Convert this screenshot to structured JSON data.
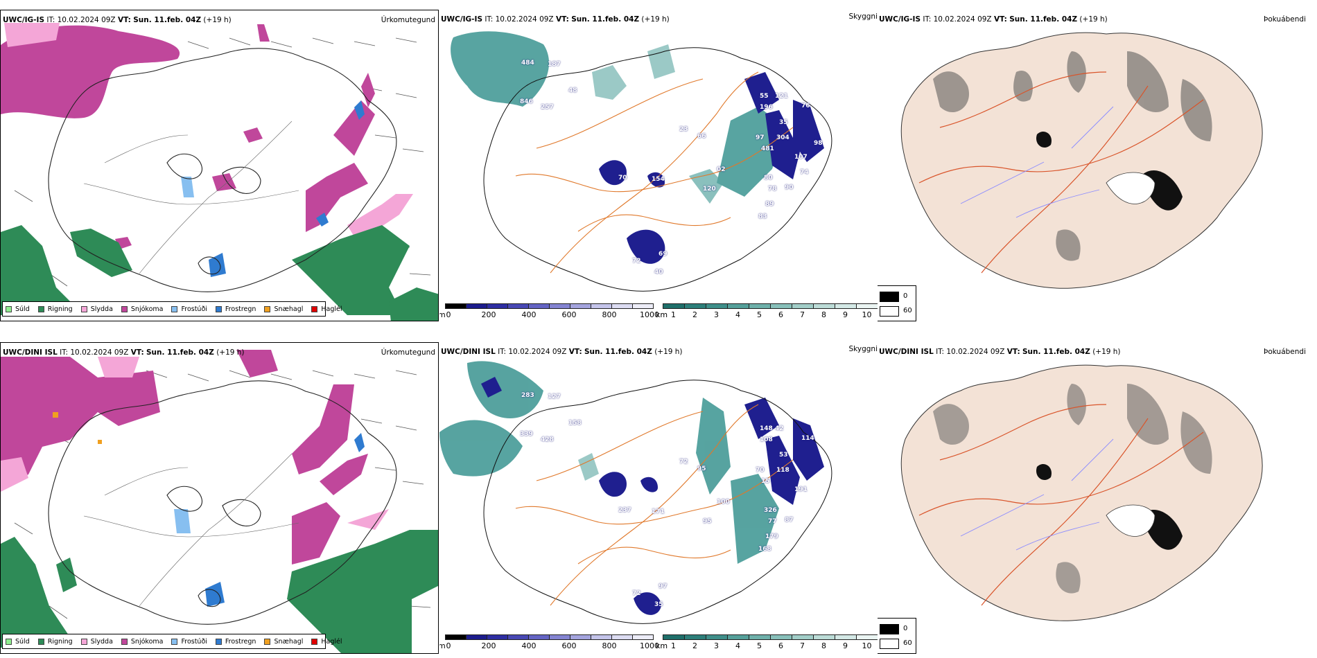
{
  "precip_legend": [
    {
      "label": "Súld",
      "color": "#90ee90"
    },
    {
      "label": "Rigning",
      "color": "#2e8b57"
    },
    {
      "label": "Slydda",
      "color": "#f4a6d7"
    },
    {
      "label": "Snjókoma",
      "color": "#c0479b"
    },
    {
      "label": "Frostúði",
      "color": "#87bff0"
    },
    {
      "label": "Frostregn",
      "color": "#2f7bd0"
    },
    {
      "label": "Snæhagl",
      "color": "#f0a020"
    },
    {
      "label": "Haglél",
      "color": "#e00000"
    }
  ],
  "cloudbase_scale": {
    "unit": "m",
    "ticks": [
      "0",
      "200",
      "400",
      "600",
      "800",
      "1000"
    ],
    "colors": [
      "#000000",
      "#1c1c8c",
      "#2e2ea2",
      "#4848b4",
      "#6464c4",
      "#8484d2",
      "#a4a4de",
      "#c4c4ea",
      "#dcdcf2",
      "#ededf8"
    ]
  },
  "visibility_scale": {
    "unit": "km",
    "ticks": [
      "1",
      "2",
      "3",
      "4",
      "5",
      "6",
      "7",
      "8",
      "9",
      "10"
    ],
    "colors": [
      "#1f6f6a",
      "#2d7f7a",
      "#3f8f8a",
      "#55a09a",
      "#6eb0aa",
      "#88c0ba",
      "#a2cec8",
      "#bcdcd7",
      "#d4e9e6",
      "#ebf5f3"
    ]
  },
  "fog_scale": {
    "top": "0",
    "bottom": "60"
  },
  "colors": {
    "snow": "#c0479b",
    "rain": "#2e8b57",
    "teal": "#3a9490",
    "navy": "#1f1f8f",
    "land": "#f3e2d6",
    "roads": "#e06a1e",
    "rivers": "#8080ff"
  },
  "rows": [
    {
      "model": "UWC/IG-IS",
      "it_label": "IT:",
      "it": "10.02.2024 09Z",
      "vt_label": "VT:",
      "vt": "Sun. 11.feb. 04Z",
      "lead": "(+19 h)",
      "panel1_title": "Úrkomutegund",
      "panel2_title": "Skyggni",
      "panel3_title": "Þokuábendi",
      "cloud_numbers": [
        "484",
        "187",
        "846",
        "257",
        "48",
        "70",
        "154",
        "23",
        "66",
        "55",
        "121",
        "196",
        "76",
        "35",
        "97",
        "481",
        "304",
        "107",
        "02",
        "120",
        "80",
        "78",
        "90",
        "89",
        "83",
        "69",
        "40",
        "72",
        "74",
        "98"
      ]
    },
    {
      "model": "UWC/DINI ISL",
      "it_label": "IT:",
      "it": "10.02.2024 09Z",
      "vt_label": "VT:",
      "vt": "Sun. 11.feb. 04Z",
      "lead": "(+19 h)",
      "panel1_title": "Úrkomutegund",
      "panel2_title": "Skyggni",
      "panel3_title": "Þokuábendi",
      "cloud_numbers": [
        "283",
        "127",
        "339",
        "428",
        "158",
        "237",
        "171",
        "72",
        "95",
        "148",
        "42",
        "108",
        "114",
        "53",
        "70",
        "15",
        "118",
        "191",
        "100",
        "95",
        "326",
        "77",
        "87",
        "179",
        "168",
        "97",
        "35",
        "72"
      ]
    }
  ]
}
